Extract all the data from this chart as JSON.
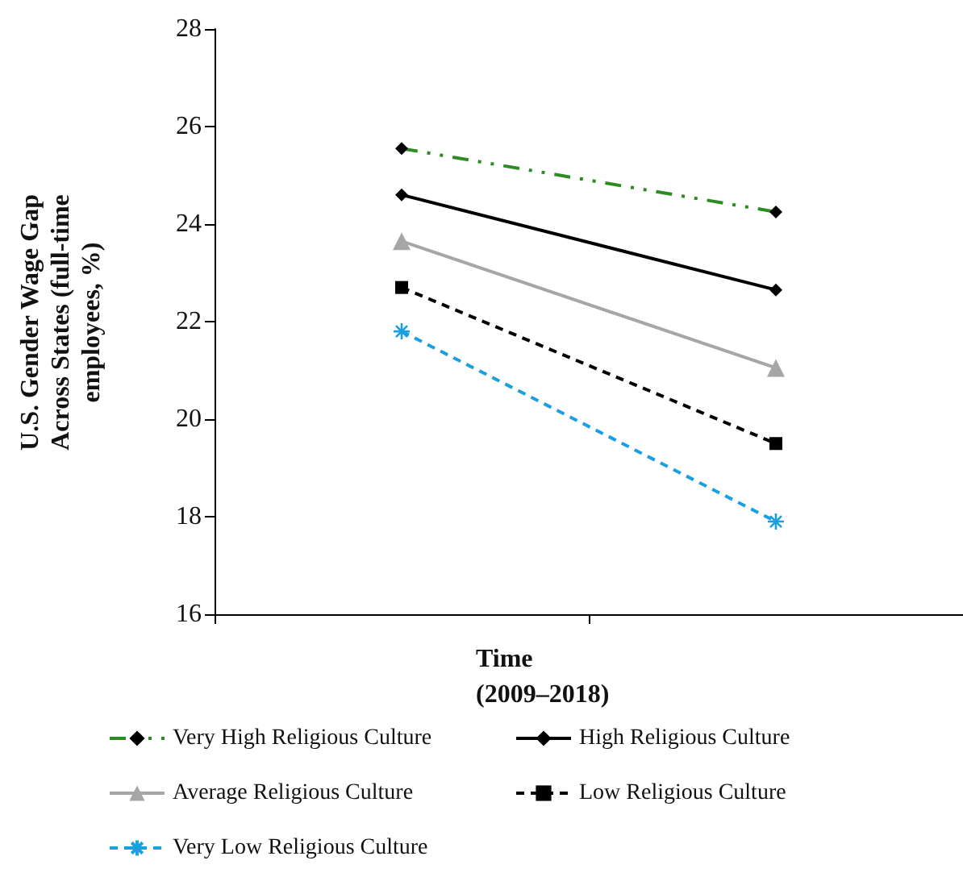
{
  "chart_data": {
    "type": "line",
    "xlabel": "Time (2009–2018)",
    "ylabel": "U.S. Gender Wage Gap Across States (full-time employees, %)",
    "categories": [
      null,
      null
    ],
    "ylim": [
      16,
      28
    ],
    "yticks": [
      16,
      18,
      20,
      22,
      24,
      26,
      28
    ],
    "grid": false,
    "legend": "bottom",
    "series": [
      {
        "name": "Very High Religious Culture",
        "color": "#2e8b23",
        "values": [
          25.55,
          24.25
        ],
        "marker": "diamond",
        "line_style": "dashdot"
      },
      {
        "name": "High Religious Culture",
        "color": "#000000",
        "values": [
          24.6,
          22.65
        ],
        "marker": "diamond",
        "line_style": "solid"
      },
      {
        "name": "Average Religious Culture",
        "color": "#a6a6a6",
        "values": [
          23.65,
          21.05
        ],
        "marker": "triangle",
        "line_style": "solid"
      },
      {
        "name": "Low Religious Culture",
        "color": "#000000",
        "values": [
          22.7,
          19.5
        ],
        "marker": "square",
        "line_style": "dashed"
      },
      {
        "name": "Very Low Religious Culture",
        "color": "#1a9fe0",
        "values": [
          21.8,
          17.9
        ],
        "marker": "cross",
        "line_style": "dashed"
      }
    ]
  }
}
